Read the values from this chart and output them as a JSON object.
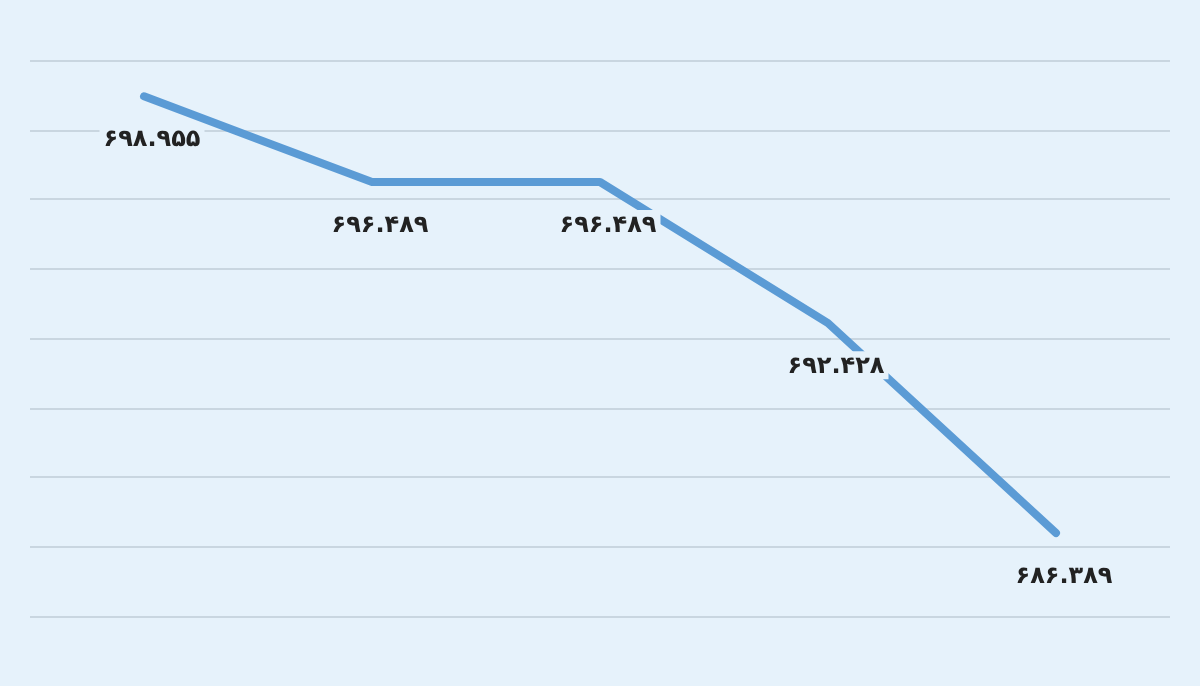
{
  "chart_data": {
    "type": "line",
    "categories": [
      null,
      null,
      null,
      null,
      null
    ],
    "series": [
      {
        "color": "#5b9bd5",
        "values": [
          698.955,
          696.489,
          696.489,
          692.428,
          686.389
        ],
        "value_labels": [
          "۶۹۸.۹۵۵",
          "۶۹۶.۴۸۹",
          "۶۹۶.۴۸۹",
          "۶۹۲.۴۲۸",
          "۶۸۶.۳۸۹"
        ]
      }
    ],
    "grid": "y",
    "marker": "none",
    "line_style": "solid"
  }
}
